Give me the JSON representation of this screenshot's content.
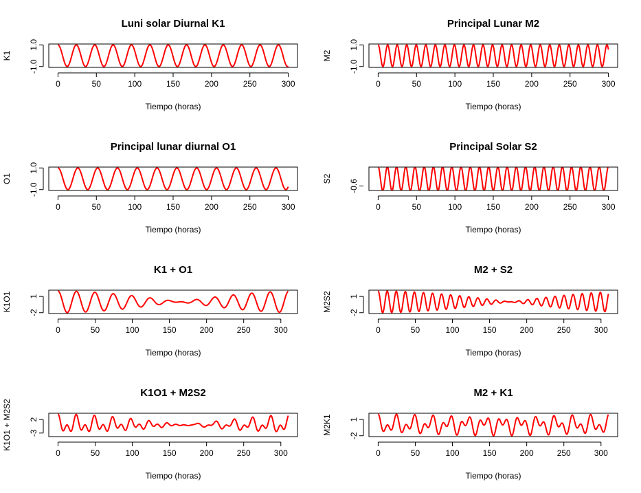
{
  "chart_data": [
    {
      "type": "line",
      "title": "Luni solar Diurnal  K1",
      "xlabel": "Tiempo (horas)",
      "ylabel": "K1",
      "xlim": [
        0,
        300
      ],
      "ylim": [
        -1.0,
        1.0
      ],
      "xticks": [
        "0",
        "50",
        "100",
        "150",
        "200",
        "250",
        "300"
      ],
      "yticks": [
        "-1.0",
        "1.0"
      ],
      "series": [
        {
          "color": "#ff0000",
          "components": [
            {
              "amplitude": 1,
              "period_hours": 23.93
            }
          ]
        }
      ]
    },
    {
      "type": "line",
      "title": "Principal Lunar  M2",
      "xlabel": "Tiempo (horas)",
      "ylabel": "M2",
      "xlim": [
        0,
        300
      ],
      "ylim": [
        -1.0,
        1.0
      ],
      "xticks": [
        "0",
        "50",
        "100",
        "150",
        "200",
        "250",
        "300"
      ],
      "yticks": [
        "-1.0",
        "1.0"
      ],
      "series": [
        {
          "color": "#ff0000",
          "components": [
            {
              "amplitude": 1,
              "period_hours": 12.42
            }
          ]
        }
      ]
    },
    {
      "type": "line",
      "title": "Principal lunar diurnal O1",
      "xlabel": "Tiempo (horas)",
      "ylabel": "O1",
      "xlim": [
        0,
        300
      ],
      "ylim": [
        -1.0,
        1.0
      ],
      "xticks": [
        "0",
        "50",
        "100",
        "150",
        "200",
        "250",
        "300"
      ],
      "yticks": [
        "-1.0",
        "1.0"
      ],
      "series": [
        {
          "color": "#ff0000",
          "components": [
            {
              "amplitude": 1,
              "period_hours": 25.82
            }
          ]
        }
      ]
    },
    {
      "type": "line",
      "title": "Principal Solar S2",
      "xlabel": "Tiempo (horas)",
      "ylabel": "S2",
      "xlim": [
        0,
        300
      ],
      "ylim": [
        -0.9,
        0.9
      ],
      "xticks": [
        "0",
        "50",
        "100",
        "150",
        "200",
        "250",
        "300"
      ],
      "yticks": [
        "-0.6"
      ],
      "series": [
        {
          "color": "#ff0000",
          "components": [
            {
              "amplitude": 1,
              "period_hours": 12.0
            }
          ]
        }
      ]
    },
    {
      "type": "line",
      "title": "K1 + O1",
      "xlabel": "Tiempo (horas)",
      "ylabel": "K1O1",
      "xlim": [
        0,
        310
      ],
      "ylim": [
        -2,
        2
      ],
      "xticks": [
        "0",
        "50",
        "100",
        "150",
        "200",
        "250",
        "300"
      ],
      "yticks": [
        "-2",
        "1"
      ],
      "series": [
        {
          "color": "#ff0000",
          "components": [
            {
              "amplitude": 1,
              "period_hours": 23.93
            },
            {
              "amplitude": 1,
              "period_hours": 25.82
            }
          ]
        }
      ]
    },
    {
      "type": "line",
      "title": "M2 + S2",
      "xlabel": "Tiempo (horas)",
      "ylabel": "M2S2",
      "xlim": [
        0,
        310
      ],
      "ylim": [
        -2,
        2
      ],
      "xticks": [
        "0",
        "50",
        "100",
        "150",
        "200",
        "250",
        "300"
      ],
      "yticks": [
        "-2",
        "1"
      ],
      "series": [
        {
          "color": "#ff0000",
          "components": [
            {
              "amplitude": 1,
              "period_hours": 12.42
            },
            {
              "amplitude": 1,
              "period_hours": 12.0
            }
          ]
        }
      ]
    },
    {
      "type": "line",
      "title": "K1O1 + M2S2",
      "xlabel": "Tiempo (horas)",
      "ylabel": "K1O1 + M2S2",
      "xlim": [
        0,
        310
      ],
      "ylim": [
        -4,
        4
      ],
      "xticks": [
        "0",
        "50",
        "100",
        "150",
        "200",
        "250",
        "300"
      ],
      "yticks": [
        "-3",
        "2"
      ],
      "series": [
        {
          "color": "#ff0000",
          "components": [
            {
              "amplitude": 1,
              "period_hours": 23.93
            },
            {
              "amplitude": 1,
              "period_hours": 25.82
            },
            {
              "amplitude": 1,
              "period_hours": 12.42
            },
            {
              "amplitude": 1,
              "period_hours": 12.0
            }
          ]
        }
      ]
    },
    {
      "type": "line",
      "title": "M2 + K1",
      "xlabel": "Tiempo (horas)",
      "ylabel": "M2K1",
      "xlim": [
        0,
        310
      ],
      "ylim": [
        -2,
        2
      ],
      "xticks": [
        "0",
        "50",
        "100",
        "150",
        "200",
        "250",
        "300"
      ],
      "yticks": [
        "-2",
        "1"
      ],
      "series": [
        {
          "color": "#ff0000",
          "components": [
            {
              "amplitude": 1,
              "period_hours": 12.42
            },
            {
              "amplitude": 1,
              "period_hours": 23.93
            }
          ]
        }
      ]
    }
  ]
}
